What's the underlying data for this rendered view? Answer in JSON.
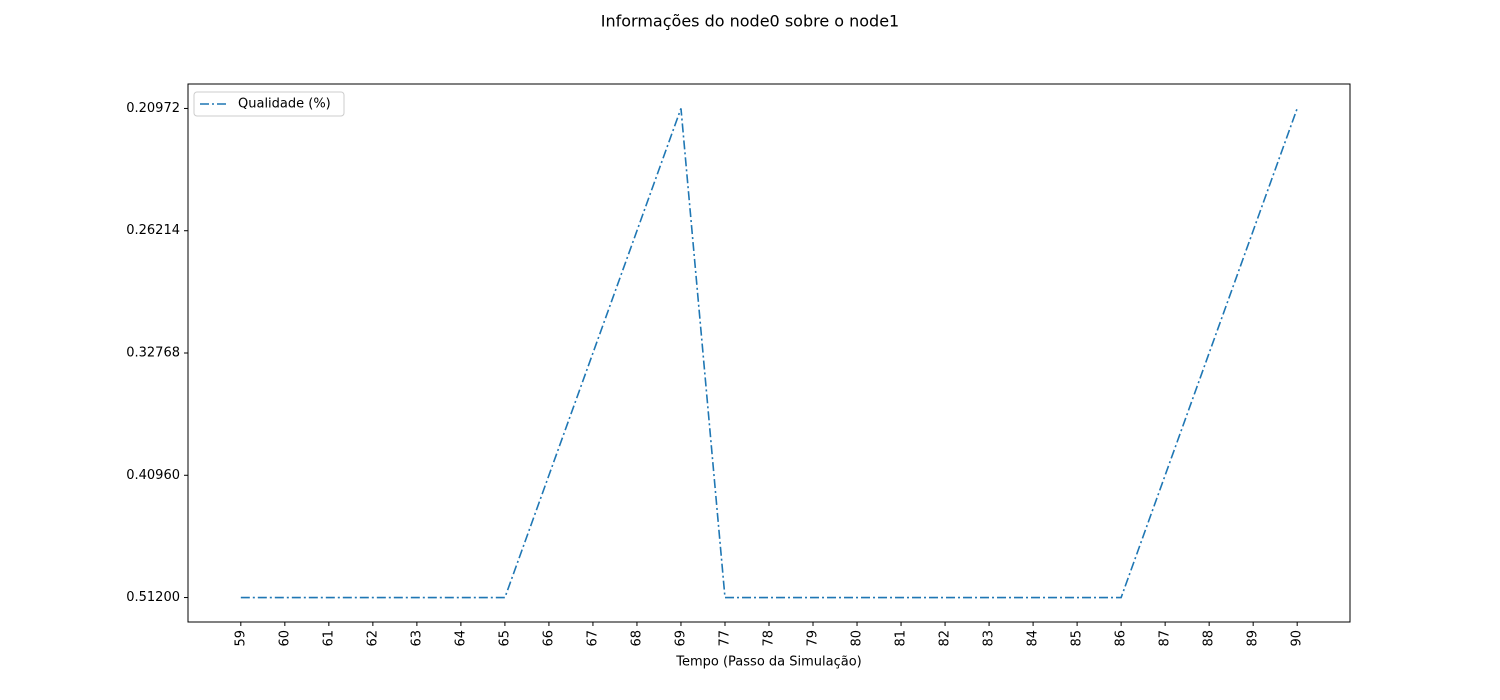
{
  "chart_data": {
    "type": "line",
    "title": "Informações do node0 sobre o node1",
    "x_label": "Tempo (Passo da Simulação)",
    "categories": [
      "59",
      "60",
      "61",
      "62",
      "63",
      "64",
      "65",
      "66",
      "67",
      "68",
      "69",
      "77",
      "78",
      "79",
      "80",
      "81",
      "82",
      "83",
      "84",
      "85",
      "86",
      "87",
      "88",
      "89",
      "90"
    ],
    "y_scale": "categorical",
    "yticks": [
      {
        "value": 0.512,
        "label": "0.51200"
      },
      {
        "value": 0.4096,
        "label": "0.40960"
      },
      {
        "value": 0.32768,
        "label": "0.32768"
      },
      {
        "value": 0.26214,
        "label": "0.26214"
      },
      {
        "value": 0.20972,
        "label": "0.20972"
      }
    ],
    "series": [
      {
        "name": "Qualidade (%)",
        "color": "#1f77b4",
        "values": [
          0.512,
          0.512,
          0.512,
          0.512,
          0.512,
          0.512,
          0.512,
          0.4096,
          0.32768,
          0.26214,
          0.20972,
          0.512,
          0.512,
          0.512,
          0.512,
          0.512,
          0.512,
          0.512,
          0.512,
          0.512,
          0.512,
          0.4096,
          0.32768,
          0.26214,
          0.20972
        ]
      }
    ],
    "legend": "upper left",
    "grid": false
  }
}
